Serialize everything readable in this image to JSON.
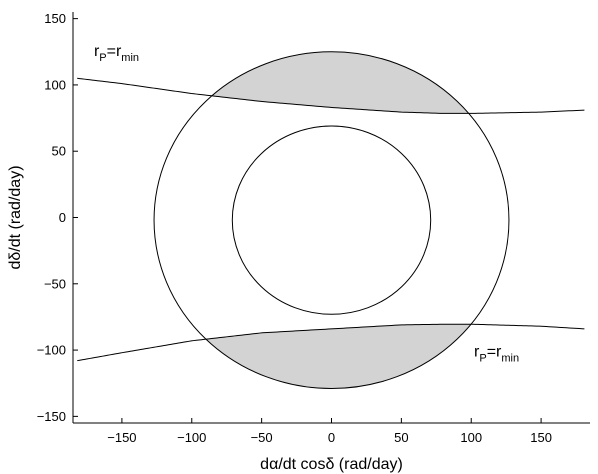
{
  "chart_data": {
    "type": "line",
    "xlabel": "dα/dt cosδ (rad/day)",
    "ylabel": "dδ/dt (rad/day)",
    "xlim": [
      -185,
      185
    ],
    "ylim": [
      -155,
      155
    ],
    "xticks": [
      -150,
      -100,
      -50,
      0,
      50,
      100,
      150
    ],
    "yticks": [
      -150,
      -100,
      -50,
      0,
      50,
      100,
      150
    ],
    "tick_labels_x": [
      "−150",
      "−100",
      "−50",
      "0",
      "50",
      "100",
      "150"
    ],
    "tick_labels_y": [
      "−150",
      "−100",
      "−50",
      "0",
      "50",
      "100",
      "150"
    ],
    "grid": false,
    "circles": [
      {
        "cx": 0,
        "cy": -2,
        "r": 127
      },
      {
        "cx": 0,
        "cy": -2,
        "r": 71
      }
    ],
    "series": [
      {
        "x": [
          -182,
          -150,
          -100,
          -50,
          0,
          50,
          80,
          100,
          150,
          181
        ],
        "y": [
          105,
          101,
          93.5,
          87.5,
          83,
          79.5,
          78.5,
          78.5,
          79.5,
          81
        ]
      },
      {
        "x": [
          -182,
          -150,
          -100,
          -50,
          0,
          50,
          80,
          100,
          150,
          181
        ],
        "y": [
          -108,
          -102,
          -93,
          -87,
          -84,
          -81,
          -80.5,
          -80.5,
          -82,
          -84
        ]
      }
    ],
    "annotations": [
      {
        "id": "top",
        "x": -170,
        "y": 122,
        "base": "r",
        "sub1": "P",
        "mid": "=r",
        "sub2": "min"
      },
      {
        "id": "bottom",
        "x": 102,
        "y": -105,
        "base": "r",
        "sub1": "P",
        "mid": "=r",
        "sub2": "min"
      }
    ],
    "colors": {
      "shade": "#d3d3d3",
      "line": "#000000"
    }
  }
}
